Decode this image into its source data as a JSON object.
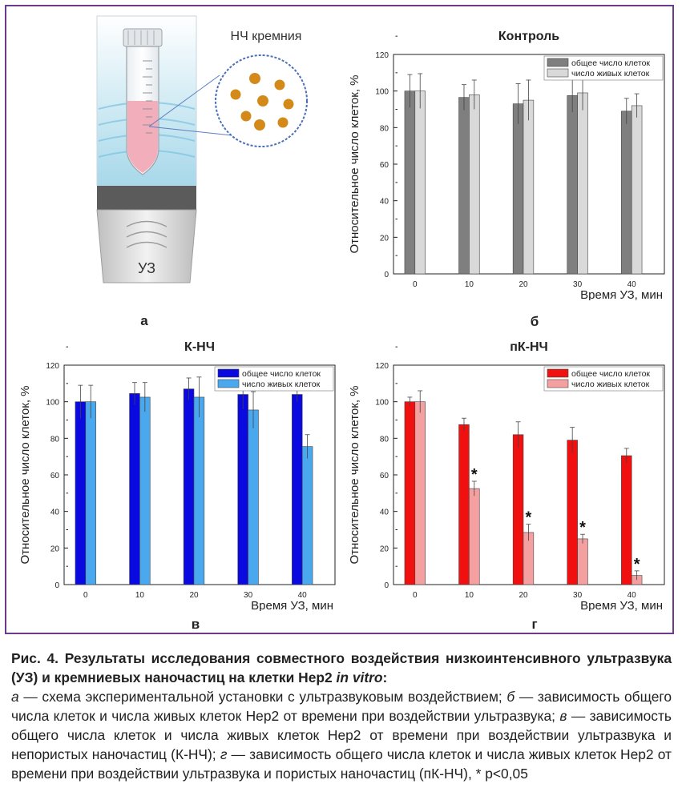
{
  "panel_a": {
    "letter": "а",
    "np_label": "НЧ кремния",
    "probe_label": "УЗ"
  },
  "panel_letters": {
    "b": "б",
    "v": "в",
    "g": "г"
  },
  "chart_data": [
    {
      "type": "bar",
      "title": "Контроль",
      "xlabel": "Время УЗ, мин",
      "ylabel": "Относительное число клеток, %",
      "categories": [
        "0",
        "10",
        "20",
        "30",
        "40"
      ],
      "ylim": [
        0,
        120
      ],
      "yticks": [
        "0",
        "20",
        "40",
        "60",
        "80",
        "100",
        "120"
      ],
      "legend_position": "top-right",
      "grid": false,
      "series": [
        {
          "name": "общее число клеток",
          "color": "#7f7f7f",
          "values": [
            100,
            96.5,
            93,
            97.5,
            89
          ],
          "errors": [
            9,
            7,
            11,
            9,
            7
          ],
          "stars": [
            false,
            false,
            false,
            false,
            false
          ]
        },
        {
          "name": "число живых клеток",
          "color": "#d9d9d9",
          "values": [
            100,
            98,
            95,
            99,
            92
          ],
          "errors": [
            9.5,
            8,
            11,
            9.5,
            6.5
          ],
          "stars": [
            false,
            false,
            false,
            false,
            false
          ]
        }
      ]
    },
    {
      "type": "bar",
      "title": "К-НЧ",
      "xlabel": "Время УЗ, мин",
      "ylabel": "Относительное число клеток, %",
      "categories": [
        "0",
        "10",
        "20",
        "30",
        "40"
      ],
      "ylim": [
        0,
        120
      ],
      "yticks": [
        "0",
        "20",
        "40",
        "60",
        "80",
        "100",
        "120"
      ],
      "legend_position": "top-right",
      "grid": false,
      "series": [
        {
          "name": "общее число клеток",
          "color": "#0a0ae0",
          "values": [
            100,
            104.5,
            107,
            104,
            104
          ],
          "errors": [
            9,
            6,
            6,
            8,
            4
          ],
          "stars": [
            false,
            false,
            false,
            false,
            false
          ]
        },
        {
          "name": "число живых клеток",
          "color": "#4aa8ee",
          "values": [
            100,
            102.5,
            102.5,
            95.5,
            75.5
          ],
          "errors": [
            9,
            8,
            11,
            10,
            6.5
          ],
          "stars": [
            false,
            false,
            false,
            false,
            false
          ]
        }
      ]
    },
    {
      "type": "bar",
      "title": "пК-НЧ",
      "xlabel": "Время УЗ, мин",
      "ylabel": "Относительное число клеток, %",
      "categories": [
        "0",
        "10",
        "20",
        "30",
        "40"
      ],
      "ylim": [
        0,
        120
      ],
      "yticks": [
        "0",
        "20",
        "40",
        "60",
        "80",
        "100",
        "120"
      ],
      "legend_position": "top-right",
      "grid": false,
      "series": [
        {
          "name": "общее число клеток",
          "color": "#f01010",
          "values": [
            100,
            87.5,
            82,
            79,
            70.5
          ],
          "errors": [
            2.5,
            3.5,
            7,
            7,
            4
          ],
          "stars": [
            false,
            false,
            false,
            false,
            false
          ]
        },
        {
          "name": "число живых клеток",
          "color": "#f5a0a0",
          "values": [
            100,
            52.5,
            28.5,
            25,
            5
          ],
          "errors": [
            6,
            4,
            4.5,
            2.5,
            2.5
          ],
          "stars": [
            false,
            true,
            true,
            true,
            true
          ]
        }
      ]
    }
  ],
  "caption": {
    "title": "Рис. 4. Результаты исследования совместного воздействия низкоинтенсивного ультразвука (УЗ) и кремниевых наночастиц на клетки Hep2 ",
    "title_italic": "in vitro",
    "title_end": ":",
    "a_letter": "а",
    "a_text": " — схема экспериментальной установки с ультразвуковым воздействием; ",
    "b_letter": "б",
    "b_text": " — зависимость общего числа клеток и числа живых клеток Hep2 от времени при воздействии ультразвука; ",
    "v_letter": "в",
    "v_text": " — зависимость общего числа клеток и числа живых клеток Hep2 от времени при воздействии ультразвука и непористых наночастиц (К-НЧ); ",
    "g_letter": "г",
    "g_text": " — зависимость общего числа клеток и числа живых клеток Hep2 от времени при воздействии ультразвука и пористых наночастиц (пК-НЧ), * p<0,05"
  }
}
